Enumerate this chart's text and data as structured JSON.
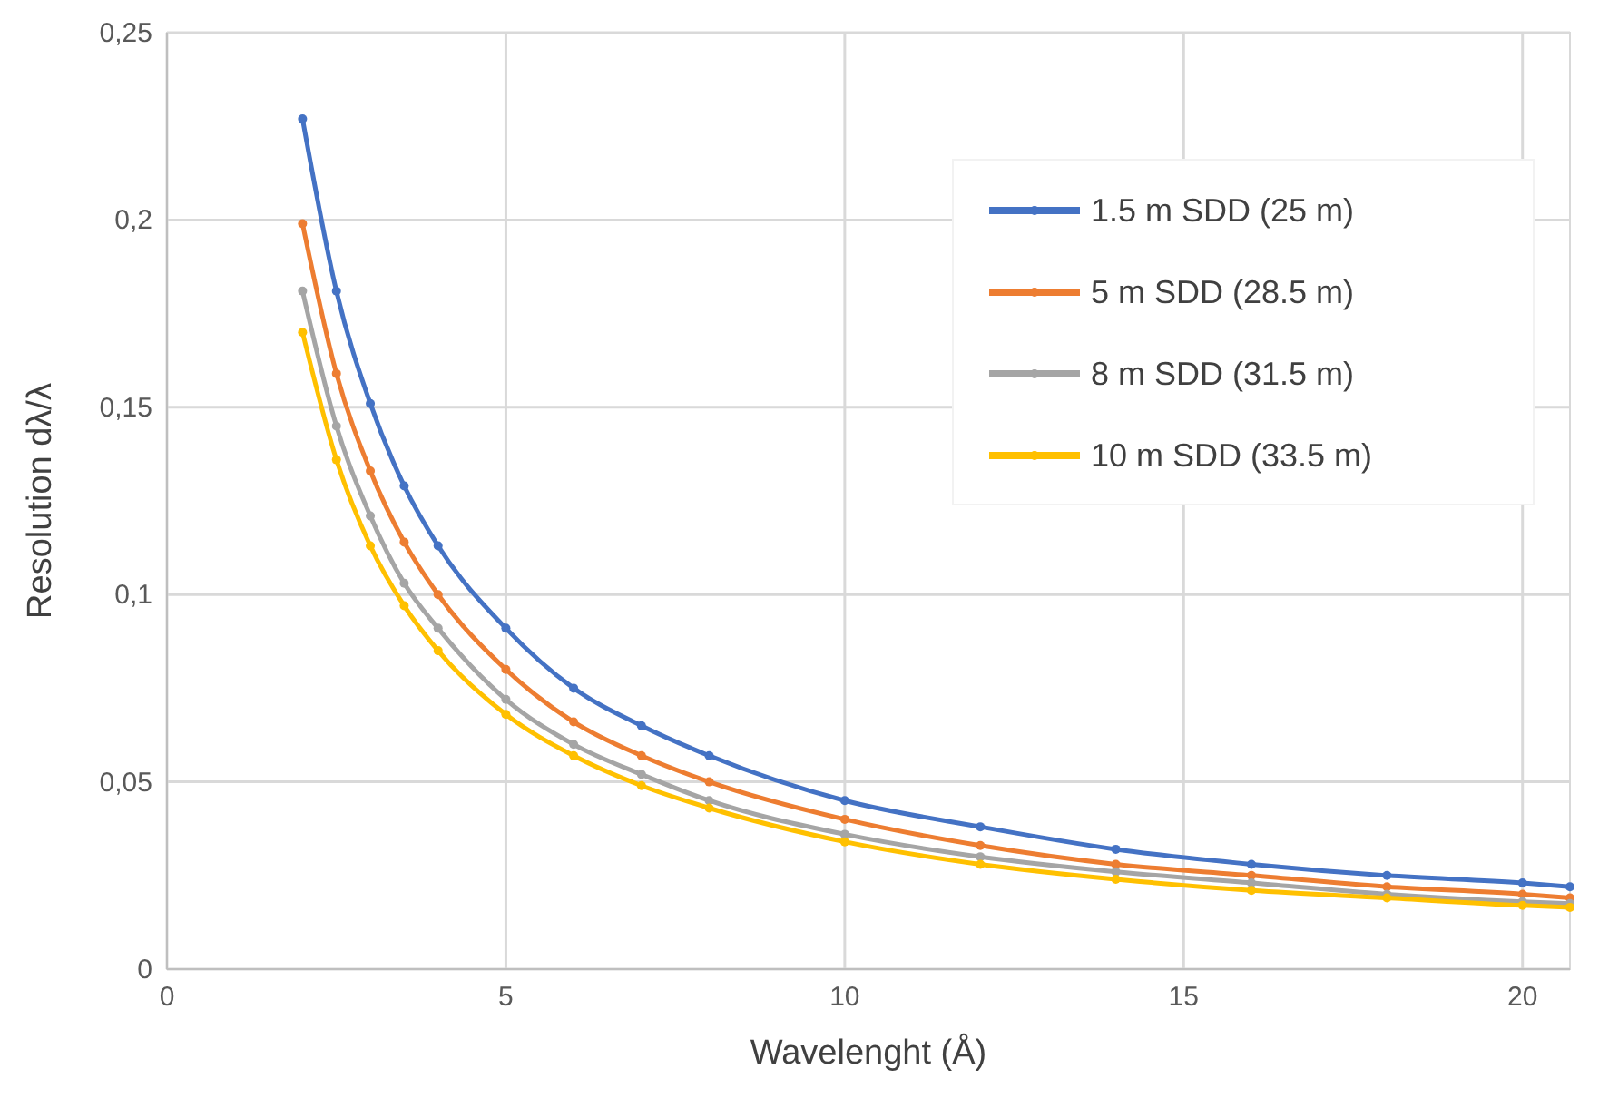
{
  "chart_data": {
    "type": "line",
    "xlabel": "Wavelenght (Å)",
    "ylabel": "Resolution dλ/λ",
    "x": [
      2,
      2.5,
      3,
      3.5,
      4,
      5,
      6,
      7,
      8,
      10,
      12,
      14,
      16,
      18,
      20,
      20.7
    ],
    "series": [
      {
        "name": "1.5 m SDD (25 m)",
        "color": "#4472c4",
        "values": [
          0.227,
          0.181,
          0.151,
          0.129,
          0.113,
          0.091,
          0.075,
          0.065,
          0.057,
          0.045,
          0.038,
          0.032,
          0.028,
          0.025,
          0.023,
          0.022
        ]
      },
      {
        "name": "5 m SDD (28.5 m)",
        "color": "#ed7d31",
        "values": [
          0.199,
          0.159,
          0.133,
          0.114,
          0.1,
          0.08,
          0.066,
          0.057,
          0.05,
          0.04,
          0.033,
          0.028,
          0.025,
          0.022,
          0.02,
          0.019
        ]
      },
      {
        "name": "8 m SDD (31.5 m)",
        "color": "#a5a5a5",
        "values": [
          0.181,
          0.145,
          0.121,
          0.103,
          0.091,
          0.072,
          0.06,
          0.052,
          0.045,
          0.036,
          0.03,
          0.026,
          0.023,
          0.02,
          0.018,
          0.0175
        ]
      },
      {
        "name": "10 m SDD (33.5 m)",
        "color": "#ffc000",
        "values": [
          0.17,
          0.136,
          0.113,
          0.097,
          0.085,
          0.068,
          0.057,
          0.049,
          0.043,
          0.034,
          0.028,
          0.024,
          0.021,
          0.019,
          0.017,
          0.0165
        ]
      }
    ],
    "xlim": [
      0,
      20.7
    ],
    "xticks": [
      0,
      5,
      10,
      15,
      20
    ],
    "ylim": [
      0,
      0.25
    ],
    "yticks": [
      0,
      {
        "value": 0.05,
        "label": "0,05"
      },
      {
        "value": 0.1,
        "label": "0,1"
      },
      {
        "value": 0.15,
        "label": "0,15"
      },
      {
        "value": 0.2,
        "label": "0,2"
      },
      {
        "value": 0.25,
        "label": "0,25"
      }
    ],
    "grid": true,
    "legend": "top right",
    "marker": "circle",
    "line_style": "solid"
  }
}
